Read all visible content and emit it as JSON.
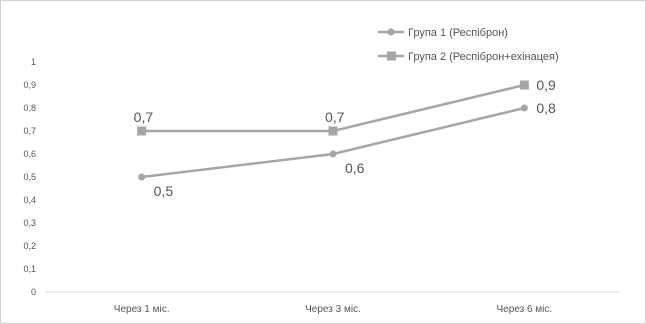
{
  "chart_data": {
    "type": "line",
    "title": "",
    "xlabel": "",
    "ylabel": "",
    "categories": [
      "Через 1 міс.",
      "Через 3 міс.",
      "Через 6 міс."
    ],
    "ylim": [
      0,
      1
    ],
    "yticks": [
      "0",
      "0,1",
      "0,2",
      "0,3",
      "0,4",
      "0,5",
      "0,6",
      "0,7",
      "0,8",
      "0,9",
      "1"
    ],
    "grid": false,
    "legend_position": "top-right",
    "series": [
      {
        "name": "Група 1 (Респіброн)",
        "marker": "circle",
        "color": "#a6a6a6",
        "values": [
          0.5,
          0.6,
          0.8
        ],
        "labels": [
          "0,5",
          "0,6",
          "0,8"
        ]
      },
      {
        "name": "Група 2 (Респіброн+ехінацея)",
        "marker": "square",
        "color": "#a6a6a6",
        "values": [
          0.7,
          0.7,
          0.9
        ],
        "labels": [
          "0,7",
          "0,7",
          "0,9"
        ]
      }
    ]
  }
}
